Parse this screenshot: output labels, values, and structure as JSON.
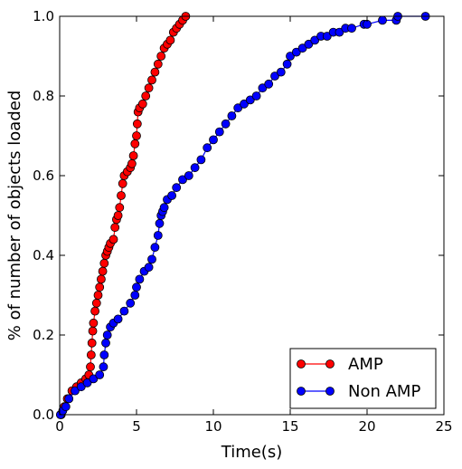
{
  "chart_data": {
    "type": "line",
    "title": "",
    "xlabel": "Time(s)",
    "ylabel": "% of number of objects loaded",
    "xlim": [
      0,
      25
    ],
    "ylim": [
      0,
      1.0
    ],
    "xticks": [
      "0",
      "5",
      "10",
      "15",
      "20",
      "25"
    ],
    "yticks": [
      "0.0",
      "0.2",
      "0.4",
      "0.6",
      "0.8",
      "1.0"
    ],
    "grid": false,
    "legend_position": "lower-right",
    "series": [
      {
        "name": "AMP",
        "color": "#ff0000",
        "marker": "circle",
        "x": [
          0.1,
          0.3,
          0.5,
          0.8,
          1.1,
          1.4,
          1.7,
          1.9,
          2.0,
          2.05,
          2.1,
          2.15,
          2.2,
          2.3,
          2.4,
          2.5,
          2.6,
          2.7,
          2.8,
          2.9,
          3.0,
          3.1,
          3.2,
          3.3,
          3.5,
          3.6,
          3.7,
          3.8,
          3.9,
          4.0,
          4.1,
          4.2,
          4.4,
          4.6,
          4.7,
          4.8,
          4.9,
          5.0,
          5.05,
          5.1,
          5.2,
          5.4,
          5.6,
          5.8,
          6.0,
          6.2,
          6.4,
          6.6,
          6.8,
          7.0,
          7.2,
          7.4,
          7.6,
          7.8,
          8.0,
          8.2
        ],
        "y": [
          0.0,
          0.02,
          0.04,
          0.06,
          0.07,
          0.08,
          0.09,
          0.1,
          0.12,
          0.15,
          0.18,
          0.21,
          0.23,
          0.26,
          0.28,
          0.3,
          0.32,
          0.34,
          0.36,
          0.38,
          0.4,
          0.41,
          0.42,
          0.43,
          0.44,
          0.47,
          0.49,
          0.5,
          0.52,
          0.55,
          0.58,
          0.6,
          0.61,
          0.62,
          0.63,
          0.65,
          0.68,
          0.7,
          0.73,
          0.76,
          0.77,
          0.78,
          0.8,
          0.82,
          0.84,
          0.86,
          0.88,
          0.9,
          0.92,
          0.93,
          0.94,
          0.96,
          0.97,
          0.98,
          0.99,
          1.0
        ]
      },
      {
        "name": "Non AMP",
        "color": "#0000ff",
        "marker": "circle",
        "x": [
          0.05,
          0.2,
          0.4,
          0.6,
          1.0,
          1.4,
          1.8,
          2.2,
          2.6,
          2.85,
          2.9,
          3.0,
          3.1,
          3.3,
          3.5,
          3.8,
          4.2,
          4.6,
          4.9,
          5.0,
          5.2,
          5.5,
          5.8,
          6.0,
          6.2,
          6.4,
          6.5,
          6.6,
          6.7,
          6.8,
          7.0,
          7.3,
          7.6,
          8.0,
          8.4,
          8.8,
          9.2,
          9.6,
          10.0,
          10.4,
          10.8,
          11.2,
          11.6,
          12.0,
          12.4,
          12.8,
          13.2,
          13.6,
          14.0,
          14.4,
          14.8,
          15.0,
          15.4,
          15.8,
          16.2,
          16.6,
          17.0,
          17.4,
          17.8,
          18.2,
          18.6,
          19.0,
          19.8,
          20.0,
          21.0,
          21.9,
          22.0,
          23.8
        ],
        "y": [
          0.0,
          0.01,
          0.02,
          0.04,
          0.06,
          0.07,
          0.08,
          0.09,
          0.1,
          0.12,
          0.15,
          0.18,
          0.2,
          0.22,
          0.23,
          0.24,
          0.26,
          0.28,
          0.3,
          0.32,
          0.34,
          0.36,
          0.37,
          0.39,
          0.42,
          0.45,
          0.48,
          0.5,
          0.51,
          0.52,
          0.54,
          0.55,
          0.57,
          0.59,
          0.6,
          0.62,
          0.64,
          0.67,
          0.69,
          0.71,
          0.73,
          0.75,
          0.77,
          0.78,
          0.79,
          0.8,
          0.82,
          0.83,
          0.85,
          0.86,
          0.88,
          0.9,
          0.91,
          0.92,
          0.93,
          0.94,
          0.95,
          0.95,
          0.96,
          0.96,
          0.97,
          0.97,
          0.98,
          0.98,
          0.99,
          0.99,
          1.0,
          1.0
        ]
      }
    ]
  }
}
